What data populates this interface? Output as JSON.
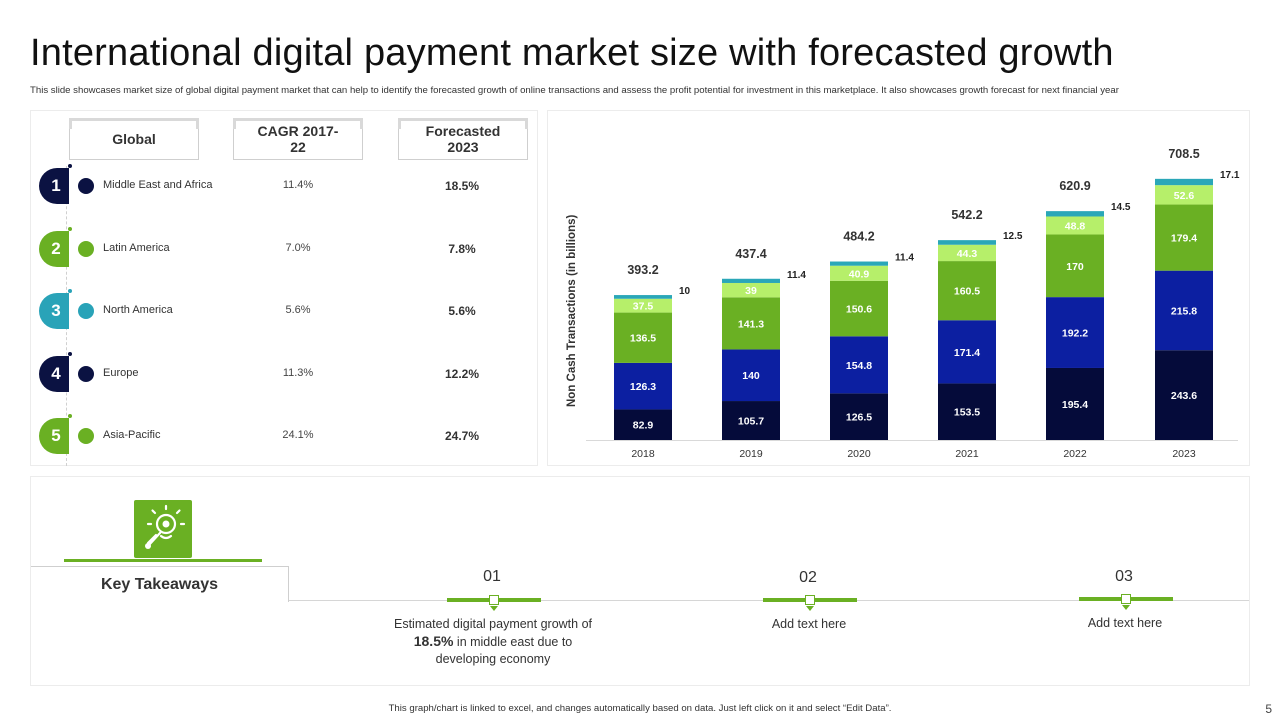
{
  "title": "International digital payment market size with forecasted growth",
  "subtitle": "This slide showcases market size of global digital payment market that can help to identify the forecasted growth of online transactions and assess the profit potential for investment in this marketplace. It also showcases growth forecast for next financial year",
  "table": {
    "headers": [
      "Global",
      "CAGR 2017-22",
      "Forecasted 2023"
    ],
    "rows": [
      {
        "num": "1",
        "region": "Middle East and Africa",
        "cagr": "11.4%",
        "forecast": "18.5%",
        "color": "#0b1242"
      },
      {
        "num": "2",
        "region": "Latin America",
        "cagr": "7.0%",
        "forecast": "7.8%",
        "color": "#6ab023"
      },
      {
        "num": "3",
        "region": "North America",
        "cagr": "5.6%",
        "forecast": "5.6%",
        "color": "#29a3b8"
      },
      {
        "num": "4",
        "region": "Europe",
        "cagr": "11.3%",
        "forecast": "12.2%",
        "color": "#0b1242"
      },
      {
        "num": "5",
        "region": "Asia-Pacific",
        "cagr": "24.1%",
        "forecast": "24.7%",
        "color": "#6ab023"
      }
    ]
  },
  "chart_data": {
    "type": "bar",
    "stacked": true,
    "title": "",
    "xlabel": "",
    "ylabel": "Non Cash Transactions (in billions)",
    "categories": [
      "2018",
      "2019",
      "2020",
      "2021",
      "2022",
      "2023"
    ],
    "series": [
      {
        "values": [
          82.9,
          105.7,
          126.5,
          153.5,
          195.4,
          243.6
        ],
        "color": "#050b3a",
        "label_color": "#ffffff"
      },
      {
        "values": [
          126.3,
          140,
          154.8,
          171.4,
          192.2,
          215.8
        ],
        "color": "#0c1fa1",
        "label_color": "#ffffff"
      },
      {
        "values": [
          136.5,
          141.3,
          150.6,
          160.5,
          170,
          179.4
        ],
        "color": "#6ab023",
        "label_color": "#ffffff"
      },
      {
        "values": [
          37.5,
          39,
          40.9,
          44.3,
          48.8,
          52.6
        ],
        "color": "#b6ef6a",
        "label_color": "#ffffff"
      },
      {
        "values": [
          10,
          11.4,
          11.4,
          12.5,
          14.5,
          17.1
        ],
        "color": "#2aa7b8",
        "label_color": "#222222"
      }
    ],
    "totals": [
      "393.2",
      "437.4",
      "484.2",
      "542.2",
      "620.9",
      "708.5"
    ],
    "ylim": [
      0,
      750
    ],
    "grid": false,
    "legend": "none"
  },
  "takeaways": {
    "title": "Key Takeaways",
    "icon": "lightbulb-gear-icon",
    "steps": [
      {
        "num": "01",
        "text_before": "Estimated digital payment growth of ",
        "highlight": "18.5%",
        "text_after": " in middle east due to developing  economy"
      },
      {
        "num": "02",
        "text": "Add text here"
      },
      {
        "num": "03",
        "text": "Add text here"
      }
    ]
  },
  "footer": "This graph/chart is linked to excel, and changes automatically based on data. Just left click on it and select “Edit Data”.",
  "page_number": "5"
}
